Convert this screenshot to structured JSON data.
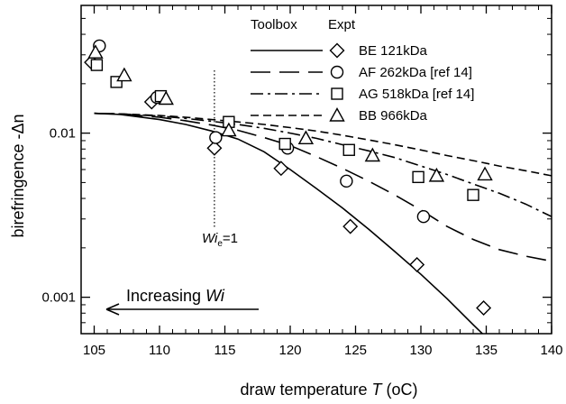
{
  "chart_data": {
    "type": "scatter",
    "title": "",
    "xlabel": "draw temperature",
    "xlabel_symbol": "T",
    "xlabel_unit": "(oC)",
    "ylabel": "birefringence -Δn",
    "x_range": [
      104,
      140
    ],
    "y_range": [
      0.0006,
      0.06
    ],
    "y_scale": "log",
    "x_ticks": [
      105,
      110,
      115,
      120,
      125,
      130,
      135,
      140
    ],
    "x_tick_labels": [
      "105",
      "110",
      "115",
      "120",
      "125",
      "130",
      "135",
      "140"
    ],
    "y_ticks": [
      0.001,
      0.01
    ],
    "y_tick_labels": [
      "0.001",
      "0.01"
    ],
    "grid": false,
    "legend": {
      "position": "top-right",
      "header_toolbox": "Toolbox",
      "header_expt": "Expt"
    },
    "series": [
      {
        "name": "BE 121kDa",
        "line_style": "solid",
        "marker": "diamond",
        "points": [
          [
            104.8,
            0.027
          ],
          [
            109.4,
            0.0155
          ],
          [
            114.2,
            0.0081
          ],
          [
            119.3,
            0.0061
          ],
          [
            124.6,
            0.0027
          ],
          [
            129.7,
            0.00158
          ],
          [
            134.8,
            0.00086
          ]
        ],
        "model": [
          [
            105,
            0.0132
          ],
          [
            107,
            0.013
          ],
          [
            110,
            0.0121
          ],
          [
            112,
            0.0113
          ],
          [
            114,
            0.0103
          ],
          [
            116,
            0.0092
          ],
          [
            118,
            0.0077
          ],
          [
            120,
            0.006
          ],
          [
            122,
            0.0046
          ],
          [
            124,
            0.0035
          ],
          [
            126,
            0.0026
          ],
          [
            128,
            0.0019
          ],
          [
            130,
            0.00138
          ],
          [
            132,
            0.00098
          ],
          [
            134,
            0.00068
          ],
          [
            135,
            0.00057
          ]
        ]
      },
      {
        "name": "AF 262kDa [ref 14]",
        "line_style": "long-dash",
        "marker": "circle",
        "points": [
          [
            105.4,
            0.034
          ],
          [
            109.8,
            0.0165
          ],
          [
            114.3,
            0.0094
          ],
          [
            119.8,
            0.0081
          ],
          [
            124.3,
            0.0051
          ],
          [
            130.2,
            0.0031
          ]
        ],
        "model": [
          [
            105,
            0.0132
          ],
          [
            107,
            0.0131
          ],
          [
            110,
            0.0125
          ],
          [
            112,
            0.0119
          ],
          [
            114,
            0.0112
          ],
          [
            116,
            0.0104
          ],
          [
            118,
            0.0094
          ],
          [
            120,
            0.0084
          ],
          [
            122,
            0.0072
          ],
          [
            124,
            0.0061
          ],
          [
            126,
            0.0051
          ],
          [
            128,
            0.0042
          ],
          [
            130,
            0.0034
          ],
          [
            132,
            0.0027
          ],
          [
            134,
            0.00225
          ],
          [
            136,
            0.00195
          ],
          [
            138,
            0.00178
          ],
          [
            140,
            0.00166
          ]
        ]
      },
      {
        "name": "AG 518kDa [ref 14]",
        "line_style": "dash-dot",
        "marker": "square",
        "points": [
          [
            105.2,
            0.026
          ],
          [
            106.7,
            0.0205
          ],
          [
            110.1,
            0.0168
          ],
          [
            115.3,
            0.0117
          ],
          [
            119.6,
            0.0086
          ],
          [
            124.5,
            0.0079
          ],
          [
            129.8,
            0.0054
          ],
          [
            134.0,
            0.0042
          ]
        ],
        "model": [
          [
            105,
            0.0132
          ],
          [
            107,
            0.0131
          ],
          [
            110,
            0.0127
          ],
          [
            112,
            0.0123
          ],
          [
            114,
            0.0118
          ],
          [
            116,
            0.0113
          ],
          [
            118,
            0.0107
          ],
          [
            120,
            0.01
          ],
          [
            122,
            0.0093
          ],
          [
            124,
            0.0085
          ],
          [
            126,
            0.0078
          ],
          [
            128,
            0.0071
          ],
          [
            130,
            0.0063
          ],
          [
            132,
            0.0056
          ],
          [
            134,
            0.0049
          ],
          [
            136,
            0.0043
          ],
          [
            138,
            0.0037
          ],
          [
            140,
            0.0031
          ]
        ]
      },
      {
        "name": "BB 966kDa",
        "line_style": "short-dash",
        "marker": "triangle",
        "points": [
          [
            105.1,
            0.031
          ],
          [
            107.3,
            0.0225
          ],
          [
            110.5,
            0.0162
          ],
          [
            115.3,
            0.0104
          ],
          [
            121.2,
            0.0093
          ],
          [
            126.3,
            0.0073
          ],
          [
            131.2,
            0.0055
          ],
          [
            134.9,
            0.0056
          ]
        ],
        "model": [
          [
            105,
            0.0132
          ],
          [
            107,
            0.0131
          ],
          [
            110,
            0.0128
          ],
          [
            112,
            0.0125
          ],
          [
            114,
            0.0121
          ],
          [
            116,
            0.0117
          ],
          [
            118,
            0.0113
          ],
          [
            120,
            0.0108
          ],
          [
            122,
            0.0103
          ],
          [
            124,
            0.0097
          ],
          [
            126,
            0.0091
          ],
          [
            128,
            0.0085
          ],
          [
            130,
            0.0079
          ],
          [
            132,
            0.0073
          ],
          [
            134,
            0.0068
          ],
          [
            136,
            0.0063
          ],
          [
            138,
            0.0059
          ],
          [
            140,
            0.0055
          ]
        ]
      }
    ],
    "annotations": {
      "wi_line_x": 114.2,
      "wi_label_main": "Wi",
      "wi_label_sub": "e",
      "wi_label_rest": "=1",
      "arrow_label_text": "Increasing ",
      "arrow_label_italic": "Wi"
    }
  }
}
